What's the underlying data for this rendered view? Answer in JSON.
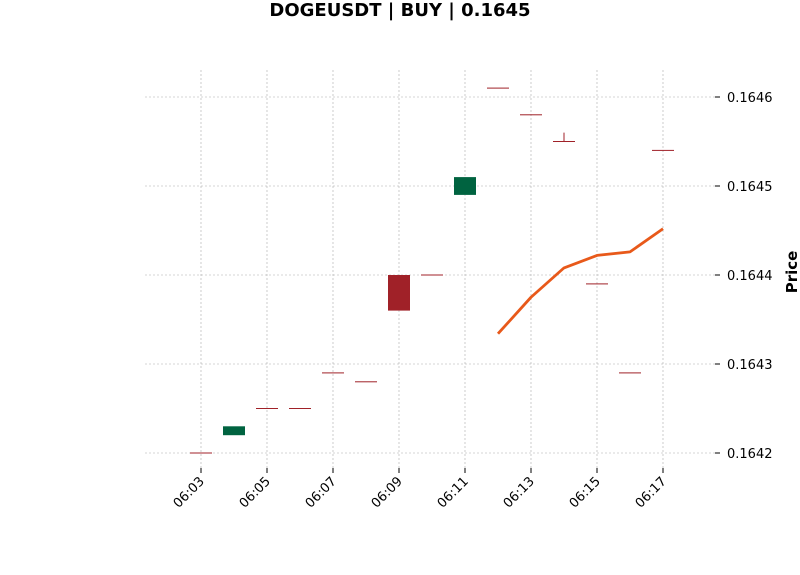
{
  "chart_data": {
    "type": "candlestick",
    "title": "DOGEUSDT | BUY | 0.1645",
    "ylabel": "Price",
    "xlabel": "",
    "ylim": [
      0.16418,
      0.16463
    ],
    "y_ticks": [
      "0.1642",
      "0.1643",
      "0.1644",
      "0.1645",
      "0.1646"
    ],
    "x_ticks": [
      "06:03",
      "06:05",
      "06:07",
      "06:09",
      "06:11",
      "06:13",
      "06:15",
      "06:17"
    ],
    "grid": true,
    "colors": {
      "up": "#006340",
      "down": "#a02128",
      "line": "#e8591a",
      "grid": "#aaaaaa"
    },
    "candles": [
      {
        "time": "06:03",
        "open": 0.1642,
        "high": 0.1642,
        "low": 0.1642,
        "close": 0.1642
      },
      {
        "time": "06:04",
        "open": 0.16422,
        "high": 0.16423,
        "low": 0.16422,
        "close": 0.16423
      },
      {
        "time": "06:05",
        "open": 0.16425,
        "high": 0.16425,
        "low": 0.16425,
        "close": 0.16425
      },
      {
        "time": "06:06",
        "open": 0.16425,
        "high": 0.16425,
        "low": 0.16425,
        "close": 0.16425
      },
      {
        "time": "06:07",
        "open": 0.16429,
        "high": 0.16429,
        "low": 0.16429,
        "close": 0.16429
      },
      {
        "time": "06:08",
        "open": 0.16428,
        "high": 0.16428,
        "low": 0.16428,
        "close": 0.16428
      },
      {
        "time": "06:09",
        "open": 0.1644,
        "high": 0.1644,
        "low": 0.16436,
        "close": 0.16436
      },
      {
        "time": "06:10",
        "open": 0.1644,
        "high": 0.1644,
        "low": 0.1644,
        "close": 0.1644
      },
      {
        "time": "06:11",
        "open": 0.16449,
        "high": 0.16451,
        "low": 0.16449,
        "close": 0.16451
      },
      {
        "time": "06:12",
        "open": 0.16461,
        "high": 0.16461,
        "low": 0.16461,
        "close": 0.16461
      },
      {
        "time": "06:13",
        "open": 0.16458,
        "high": 0.16458,
        "low": 0.16458,
        "close": 0.16458
      },
      {
        "time": "06:14",
        "open": 0.16455,
        "high": 0.16456,
        "low": 0.16455,
        "close": 0.16455
      },
      {
        "time": "06:15",
        "open": 0.16439,
        "high": 0.16439,
        "low": 0.16439,
        "close": 0.16439
      },
      {
        "time": "06:16",
        "open": 0.16429,
        "high": 0.16429,
        "low": 0.16429,
        "close": 0.16429
      },
      {
        "time": "06:17",
        "open": 0.16454,
        "high": 0.16454,
        "low": 0.16454,
        "close": 0.16454
      }
    ],
    "series": [
      {
        "type": "line",
        "x": [
          "06:12",
          "06:13",
          "06:14",
          "06:15",
          "06:16",
          "06:17"
        ],
        "values": [
          0.164334,
          0.164375,
          0.164408,
          0.164422,
          0.164426,
          0.164452
        ]
      }
    ]
  }
}
